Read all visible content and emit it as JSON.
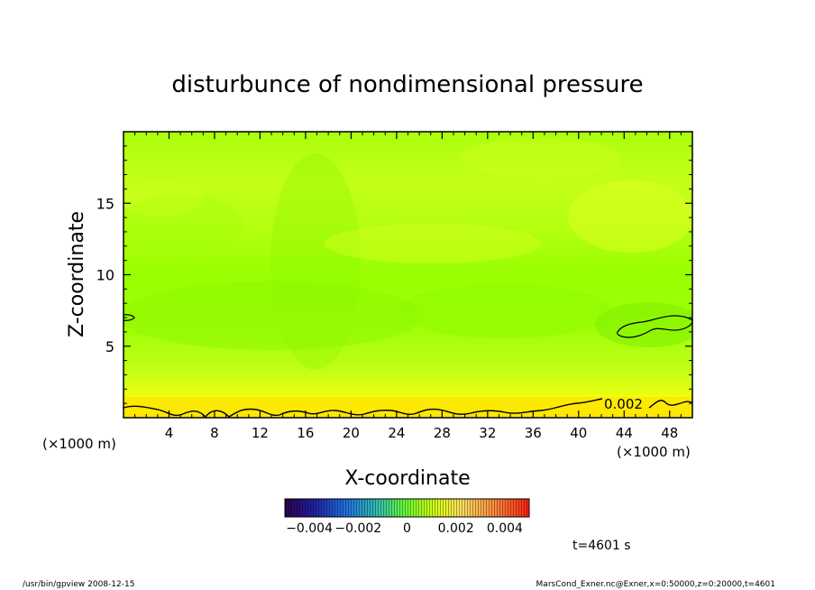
{
  "chart_data": {
    "type": "heatmap",
    "title": "disturbunce of nondimensional pressure",
    "xlabel": "X-coordinate",
    "ylabel": "Z-coordinate",
    "x_unit": "(×1000 m)",
    "x_unit_right": "(×1000 m)",
    "xlim": [
      0,
      50
    ],
    "ylim": [
      0,
      20
    ],
    "x_ticks": [
      4,
      8,
      12,
      16,
      20,
      24,
      28,
      32,
      36,
      40,
      44,
      48
    ],
    "y_ticks": [
      5,
      10,
      15
    ],
    "contour_label": "0.002",
    "colorbar": {
      "min": -0.005,
      "max": 0.005,
      "tick_labels": [
        "−0.004",
        "−0.002",
        "0",
        "0.002",
        "0.004"
      ],
      "tick_values": [
        -0.004,
        -0.002,
        0,
        0.002,
        0.004
      ]
    },
    "field_range_shown": [
      0.0005,
      0.0025
    ],
    "grid": false
  },
  "time_label": "t=4601 s",
  "footer": {
    "left": "/usr/bin/gpview   2008-12-15",
    "right": "MarsCond_Exner.nc@Exner,x=0:50000,z=0:20000,t=4601"
  },
  "colors": {
    "low_field": "#95ff00",
    "mid_field": "#c8ff20",
    "high_field": "#ffee00",
    "contour": "#000000"
  }
}
